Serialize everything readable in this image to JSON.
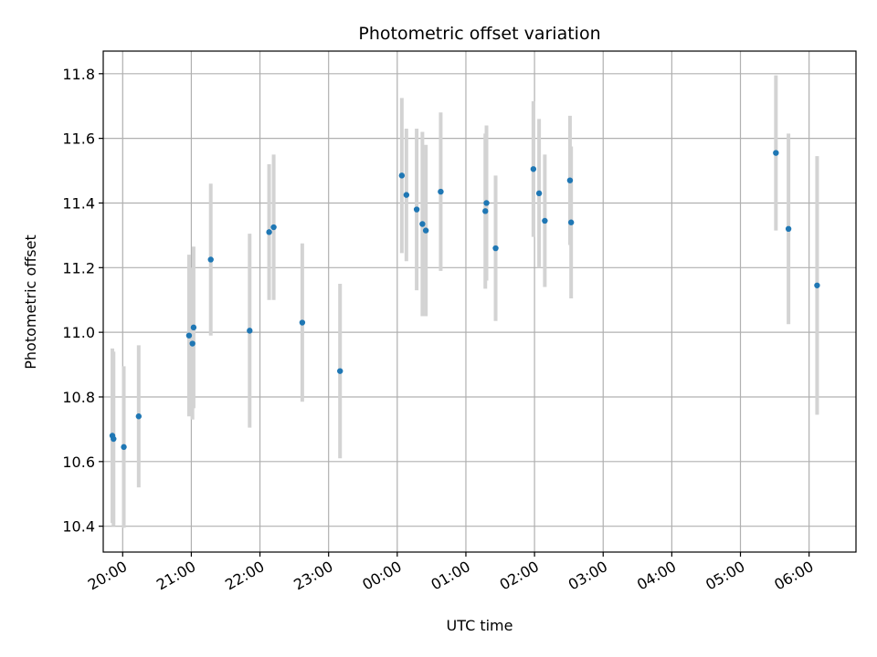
{
  "chart_data": {
    "type": "scatter",
    "title": "Photometric offset variation",
    "xlabel": "UTC time",
    "ylabel": "Photometric offset",
    "x_tick_labels": [
      "20:00",
      "21:00",
      "22:00",
      "23:00",
      "00:00",
      "01:00",
      "02:00",
      "03:00",
      "04:00",
      "05:00",
      "06:00"
    ],
    "y_ticks": [
      10.4,
      10.6,
      10.8,
      11.0,
      11.2,
      11.4,
      11.6,
      11.8
    ],
    "y_tick_labels": [
      "10.4",
      "10.6",
      "10.8",
      "11.0",
      "11.2",
      "11.4",
      "11.6",
      "11.8"
    ],
    "xlim": [
      "19:43",
      "06:41"
    ],
    "ylim": [
      10.32,
      11.87
    ],
    "grid": true,
    "marker_color": "#1f77b4",
    "errorbar_color": "#d3d3d3",
    "points": [
      {
        "t": "19:51",
        "y": 10.68,
        "err": 0.27
      },
      {
        "t": "19:52",
        "y": 10.67,
        "err": 0.27
      },
      {
        "t": "20:01",
        "y": 10.645,
        "err": 0.25
      },
      {
        "t": "20:14",
        "y": 10.74,
        "err": 0.22
      },
      {
        "t": "20:58",
        "y": 10.99,
        "err": 0.25
      },
      {
        "t": "21:01",
        "y": 10.965,
        "err": 0.235
      },
      {
        "t": "21:02",
        "y": 11.015,
        "err": 0.25
      },
      {
        "t": "21:17",
        "y": 11.225,
        "err": 0.235
      },
      {
        "t": "21:51",
        "y": 11.005,
        "err": 0.3
      },
      {
        "t": "22:08",
        "y": 11.31,
        "err": 0.21
      },
      {
        "t": "22:12",
        "y": 11.325,
        "err": 0.225
      },
      {
        "t": "22:37",
        "y": 11.03,
        "err": 0.245
      },
      {
        "t": "23:10",
        "y": 10.88,
        "err": 0.27
      },
      {
        "t": "00:04",
        "y": 11.485,
        "err": 0.24
      },
      {
        "t": "00:08",
        "y": 11.425,
        "err": 0.205
      },
      {
        "t": "00:17",
        "y": 11.38,
        "err": 0.25
      },
      {
        "t": "00:22",
        "y": 11.335,
        "err": 0.285
      },
      {
        "t": "00:25",
        "y": 11.315,
        "err": 0.265
      },
      {
        "t": "00:38",
        "y": 11.435,
        "err": 0.245
      },
      {
        "t": "01:17",
        "y": 11.375,
        "err": 0.24
      },
      {
        "t": "01:18",
        "y": 11.4,
        "err": 0.24
      },
      {
        "t": "01:26",
        "y": 11.26,
        "err": 0.225
      },
      {
        "t": "01:59",
        "y": 11.505,
        "err": 0.21
      },
      {
        "t": "02:04",
        "y": 11.43,
        "err": 0.23
      },
      {
        "t": "02:09",
        "y": 11.345,
        "err": 0.205
      },
      {
        "t": "02:31",
        "y": 11.47,
        "err": 0.2
      },
      {
        "t": "02:32",
        "y": 11.34,
        "err": 0.235
      },
      {
        "t": "05:31",
        "y": 11.555,
        "err": 0.24
      },
      {
        "t": "05:42",
        "y": 11.32,
        "err": 0.295
      },
      {
        "t": "06:07",
        "y": 11.145,
        "err": 0.4
      }
    ]
  }
}
